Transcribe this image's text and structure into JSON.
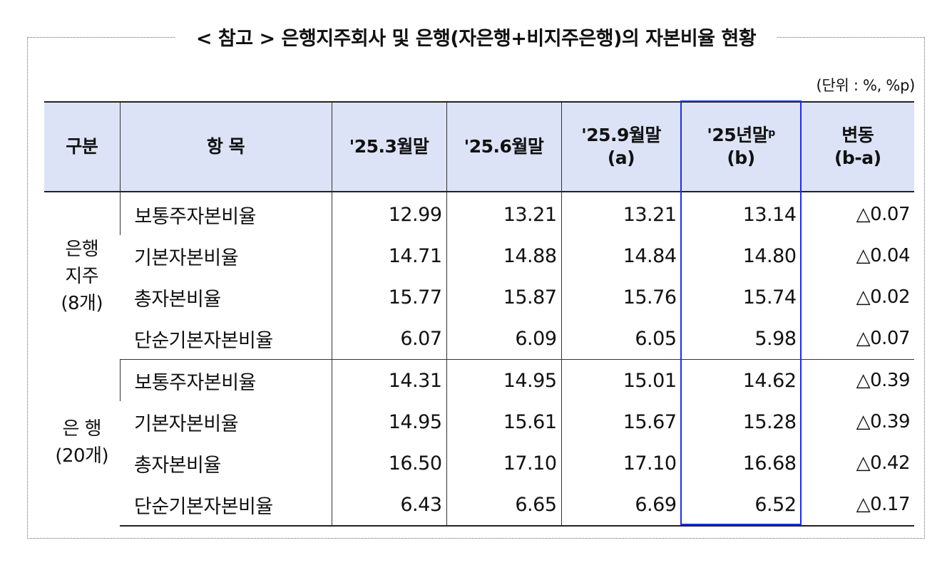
{
  "title": "< 참고 > 은행지주회사 및 은행(자은행+비지주은행)의 자본비율 현황",
  "unit": "(단위 : %, %p)",
  "headers": {
    "group": "구분",
    "item": "항 목",
    "c1": "'25.3월말",
    "c2": "'25.6월말",
    "c3_line1": "'25.9월말",
    "c3_line2": "(a)",
    "c4_line1": "'25년말",
    "c4_sup": "p",
    "c4_line2": "(b)",
    "c5_line1": "변동",
    "c5_line2": "(b-a)"
  },
  "groups": [
    {
      "label_line1": "은행",
      "label_line2": "지주",
      "label_line3": "(8개)",
      "rows": [
        {
          "item": "보통주자본비율",
          "v1": "12.99",
          "v2": "13.21",
          "v3": "13.21",
          "v4": "13.14",
          "change": "△0.07"
        },
        {
          "item": "기본자본비율",
          "v1": "14.71",
          "v2": "14.88",
          "v3": "14.84",
          "v4": "14.80",
          "change": "△0.04"
        },
        {
          "item": "총자본비율",
          "v1": "15.77",
          "v2": "15.87",
          "v3": "15.76",
          "v4": "15.74",
          "change": "△0.02"
        },
        {
          "item": "단순기본자본비율",
          "v1": "6.07",
          "v2": "6.09",
          "v3": "6.05",
          "v4": "5.98",
          "change": "△0.07"
        }
      ]
    },
    {
      "label_line1": "은 행",
      "label_line2": "(20개)",
      "rows": [
        {
          "item": "보통주자본비율",
          "v1": "14.31",
          "v2": "14.95",
          "v3": "15.01",
          "v4": "14.62",
          "change": "△0.39"
        },
        {
          "item": "기본자본비율",
          "v1": "14.95",
          "v2": "15.61",
          "v3": "15.67",
          "v4": "15.28",
          "change": "△0.39"
        },
        {
          "item": "총자본비율",
          "v1": "16.50",
          "v2": "17.10",
          "v3": "17.10",
          "v4": "16.68",
          "change": "△0.42"
        },
        {
          "item": "단순기본자본비율",
          "v1": "6.43",
          "v2": "6.65",
          "v3": "6.69",
          "v4": "6.52",
          "change": "△0.17"
        }
      ]
    }
  ],
  "colors": {
    "header_bg": "#dde3f6",
    "highlight_border": "#1f2ee6"
  }
}
